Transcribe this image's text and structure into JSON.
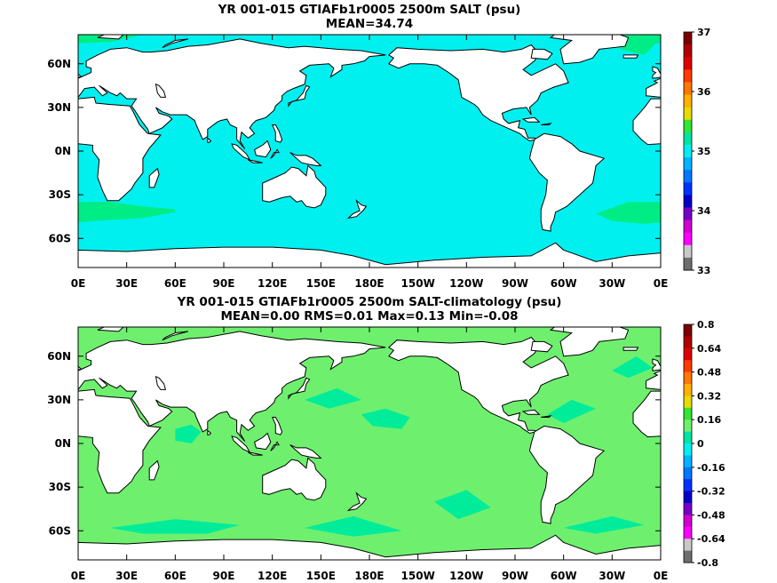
{
  "colors": {
    "ocean_top": "#00f0f0",
    "ocean_top_alt": "#00ec84",
    "ocean_bottom": "#6ef06e",
    "ocean_bottom_alt": "#00ec9a",
    "land": "#ffffff",
    "coast": "#000000"
  },
  "panels": [
    {
      "title_line1": "YR 001-015 GTIAFb1r0005 2500m SALT (psu)",
      "title_line2": "MEAN=34.74",
      "y_ticks": [
        "60N",
        "30N",
        "0N",
        "30S",
        "60S"
      ],
      "x_ticks": [
        "0E",
        "30E",
        "60E",
        "90E",
        "120E",
        "150E",
        "180E",
        "150W",
        "120W",
        "90W",
        "60W",
        "30W",
        "0E"
      ],
      "colorbar": {
        "labels": [
          "37",
          "36",
          "35",
          "34",
          "33"
        ],
        "colors": [
          "#7a0000",
          "#b00000",
          "#e00000",
          "#ff3a00",
          "#ff7800",
          "#ffb000",
          "#e8dc00",
          "#32e632",
          "#00e6a0",
          "#00f0f0",
          "#00b4ff",
          "#0078ff",
          "#0032ff",
          "#0000c8",
          "#7800c8",
          "#d200d2",
          "#ff00ff",
          "#c8c8c8",
          "#6e6e6e"
        ]
      }
    },
    {
      "title_line1": "YR 001-015 GTIAFb1r0005 2500m SALT-climatology (psu)",
      "title_line2": "MEAN=0.00   RMS=0.01   Max=0.13   Min=-0.08",
      "y_ticks": [
        "60N",
        "30N",
        "0N",
        "30S",
        "60S"
      ],
      "x_ticks": [
        "0E",
        "30E",
        "60E",
        "90E",
        "120E",
        "150E",
        "180E",
        "150W",
        "120W",
        "90W",
        "60W",
        "30W",
        "0E"
      ],
      "colorbar": {
        "labels": [
          "0.8",
          "0.64",
          "0.48",
          "0.32",
          "0.16",
          "0",
          "-0.16",
          "-0.32",
          "-0.48",
          "-0.64",
          "-0.8"
        ],
        "colors": [
          "#7a0000",
          "#b00000",
          "#e00000",
          "#ff3a00",
          "#ff7800",
          "#ffb000",
          "#e8dc00",
          "#32e632",
          "#6ef06e",
          "#00e6a0",
          "#00f0f0",
          "#00b4ff",
          "#0078ff",
          "#0032ff",
          "#0000c8",
          "#7800c8",
          "#d200d2",
          "#ff00ff",
          "#c8c8c8",
          "#6e6e6e"
        ]
      }
    }
  ]
}
